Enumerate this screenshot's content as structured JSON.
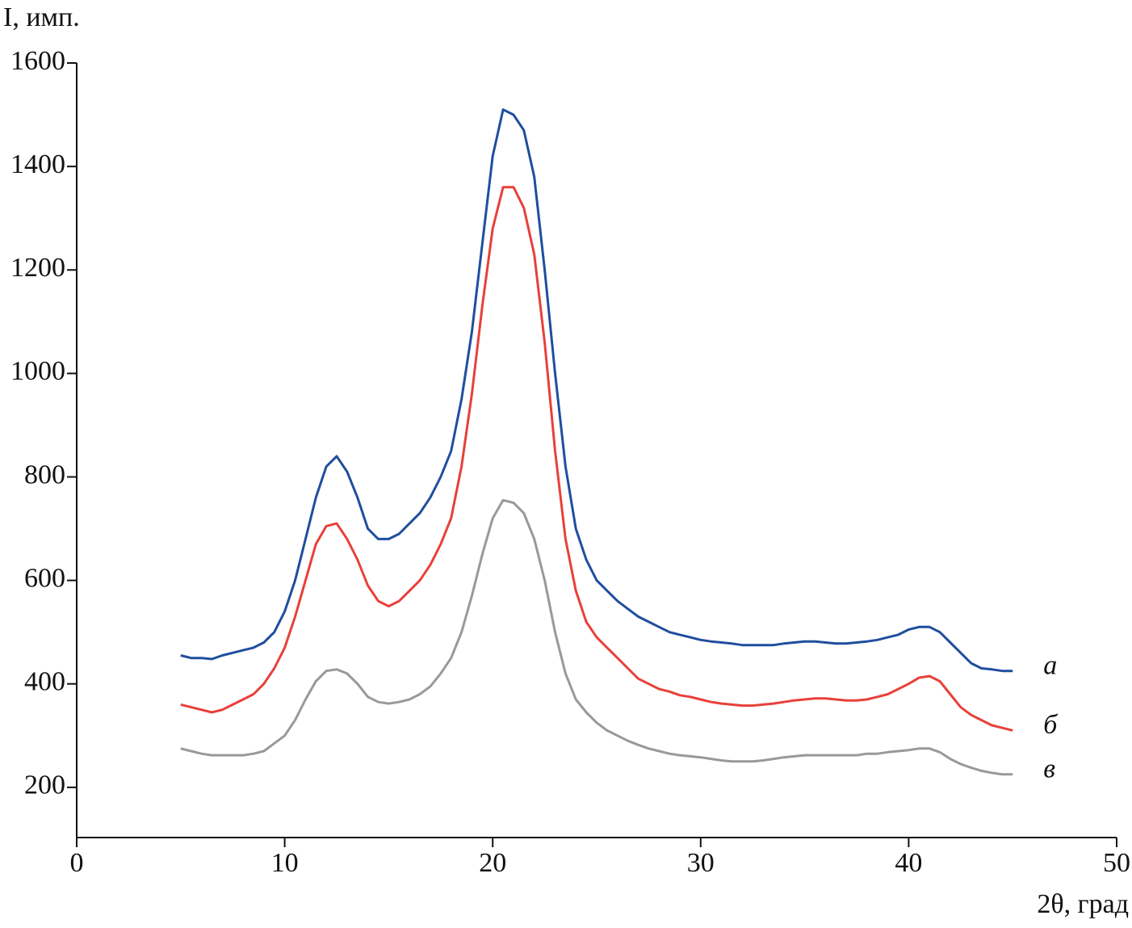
{
  "chart_data": {
    "type": "line",
    "ylabel": "I, имп.",
    "xlabel": "2θ, град",
    "xlim": [
      0,
      50
    ],
    "xticks": [
      0,
      10,
      20,
      30,
      40,
      50
    ],
    "ylim": [
      103,
      1600
    ],
    "yticks": [
      200,
      400,
      600,
      800,
      1000,
      1200,
      1400,
      1600
    ],
    "x": [
      5,
      5.5,
      6,
      6.5,
      7,
      7.5,
      8,
      8.5,
      9,
      9.5,
      10,
      10.5,
      11,
      11.5,
      12,
      12.5,
      13,
      13.5,
      14,
      14.5,
      15,
      15.5,
      16,
      16.5,
      17,
      17.5,
      18,
      18.5,
      19,
      19.5,
      20,
      20.5,
      21,
      21.5,
      22,
      22.5,
      23,
      23.5,
      24,
      24.5,
      25,
      25.5,
      26,
      26.5,
      27,
      27.5,
      28,
      28.5,
      29,
      29.5,
      30,
      30.5,
      31,
      31.5,
      32,
      32.5,
      33,
      33.5,
      34,
      34.5,
      35,
      35.5,
      36,
      36.5,
      37,
      37.5,
      38,
      38.5,
      39,
      39.5,
      40,
      40.5,
      41,
      41.5,
      42,
      42.5,
      43,
      43.5,
      44,
      44.5,
      45
    ],
    "series": [
      {
        "name": "а",
        "color": "#1f4e9e",
        "values": [
          455,
          450,
          450,
          448,
          455,
          460,
          465,
          470,
          480,
          500,
          540,
          600,
          680,
          760,
          820,
          840,
          810,
          760,
          700,
          680,
          680,
          690,
          710,
          730,
          760,
          800,
          850,
          950,
          1080,
          1250,
          1420,
          1510,
          1500,
          1470,
          1380,
          1200,
          1000,
          820,
          700,
          640,
          600,
          580,
          560,
          545,
          530,
          520,
          510,
          500,
          495,
          490,
          485,
          482,
          480,
          478,
          475,
          475,
          475,
          475,
          478,
          480,
          482,
          482,
          480,
          478,
          478,
          480,
          482,
          485,
          490,
          495,
          505,
          510,
          510,
          500,
          480,
          460,
          440,
          430,
          428,
          425,
          425
        ]
      },
      {
        "name": "б",
        "color": "#e8403a",
        "values": [
          360,
          355,
          350,
          345,
          350,
          360,
          370,
          380,
          400,
          430,
          470,
          530,
          600,
          670,
          705,
          710,
          680,
          640,
          590,
          560,
          550,
          560,
          580,
          600,
          630,
          670,
          720,
          820,
          960,
          1130,
          1280,
          1360,
          1360,
          1320,
          1230,
          1060,
          850,
          680,
          580,
          520,
          490,
          470,
          450,
          430,
          410,
          400,
          390,
          385,
          378,
          375,
          370,
          365,
          362,
          360,
          358,
          358,
          360,
          362,
          365,
          368,
          370,
          372,
          372,
          370,
          368,
          368,
          370,
          375,
          380,
          390,
          400,
          412,
          415,
          405,
          380,
          355,
          340,
          330,
          320,
          315,
          310
        ]
      },
      {
        "name": "в",
        "color": "#999999",
        "values": [
          275,
          270,
          265,
          262,
          262,
          262,
          262,
          265,
          270,
          285,
          300,
          330,
          370,
          405,
          425,
          428,
          420,
          400,
          375,
          365,
          362,
          365,
          370,
          380,
          395,
          420,
          450,
          500,
          570,
          650,
          720,
          755,
          750,
          730,
          680,
          600,
          500,
          420,
          370,
          345,
          325,
          310,
          300,
          290,
          282,
          275,
          270,
          265,
          262,
          260,
          258,
          255,
          252,
          250,
          250,
          250,
          252,
          255,
          258,
          260,
          262,
          262,
          262,
          262,
          262,
          262,
          265,
          265,
          268,
          270,
          272,
          275,
          275,
          268,
          255,
          245,
          238,
          232,
          228,
          225,
          225
        ]
      }
    ]
  }
}
